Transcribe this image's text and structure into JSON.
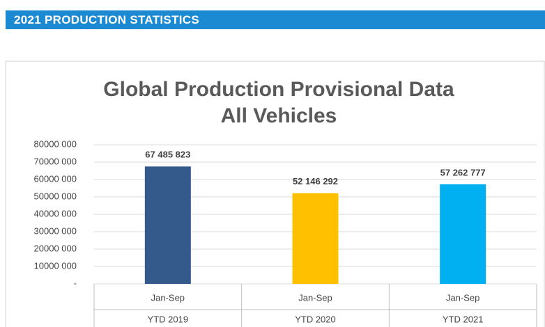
{
  "header": {
    "title": "2021 PRODUCTION STATISTICS"
  },
  "chart_data": {
    "type": "bar",
    "title": [
      "Global Production Provisional Data",
      "All Vehicles"
    ],
    "categories": [
      [
        "Jan-Sep",
        "YTD 2019"
      ],
      [
        "Jan-Sep",
        "YTD 2020"
      ],
      [
        "Jan-Sep",
        "YTD 2021"
      ]
    ],
    "values": [
      67485823,
      52146292,
      57262777
    ],
    "value_labels": [
      "67 485 823",
      "52 146 292",
      "57 262 777"
    ],
    "colors": [
      "#335a8a",
      "#ffc000",
      "#00b0f0"
    ],
    "ylim": [
      0,
      80000000
    ],
    "yticks": [
      {
        "value": 0,
        "label": "-"
      },
      {
        "value": 10000000,
        "label": "10000 000"
      },
      {
        "value": 20000000,
        "label": "20000 000"
      },
      {
        "value": 30000000,
        "label": "30000 000"
      },
      {
        "value": 40000000,
        "label": "40000 000"
      },
      {
        "value": 50000000,
        "label": "50000 000"
      },
      {
        "value": 60000000,
        "label": "60000 000"
      },
      {
        "value": 70000000,
        "label": "70000 000"
      },
      {
        "value": 80000000,
        "label": "80000 000"
      }
    ],
    "grid": true
  }
}
